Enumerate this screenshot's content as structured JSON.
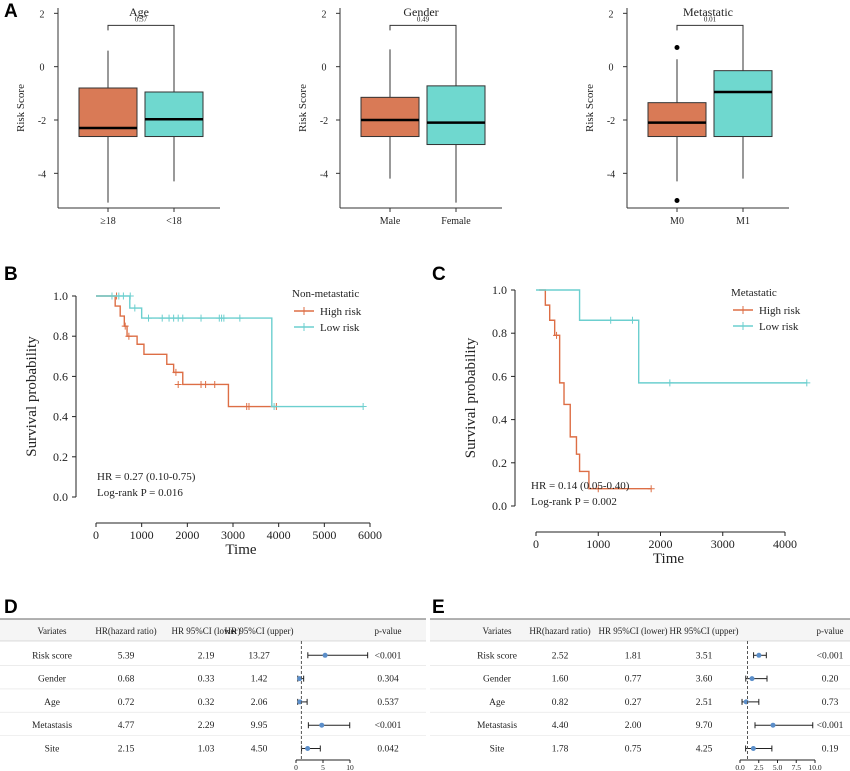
{
  "panel_letters": [
    "A",
    "B",
    "C",
    "D",
    "E"
  ],
  "colors": {
    "orange": "#d97a56",
    "teal": "#6fd8cf",
    "km_orange": "#dd6e45",
    "km_teal": "#6ccfcf",
    "forest_point": "#5b8ec9"
  },
  "chart_data": [
    {
      "panel": "A",
      "type": "box",
      "title": "Age",
      "ylabel": "Risk Score",
      "yticks": [
        "-4",
        "-2",
        "0",
        "2"
      ],
      "ylim": [
        -5.3,
        2.2
      ],
      "categories": [
        "≥18",
        "<18"
      ],
      "boxes": [
        {
          "name": "≥18",
          "color": "orange",
          "whisker_low": -5.1,
          "q1": -2.62,
          "median": -2.3,
          "q3": -0.8,
          "whisker_high": 0.6,
          "outliers": []
        },
        {
          "name": "<18",
          "color": "teal",
          "whisker_low": -4.3,
          "q1": -2.62,
          "median": -1.97,
          "q3": -0.95,
          "whisker_high": 1.4,
          "outliers": []
        }
      ],
      "pvalue": "0.57"
    },
    {
      "panel": "A",
      "type": "box",
      "title": "Gender",
      "ylabel": "Risk Score",
      "yticks": [
        "-4",
        "-2",
        "0",
        "2"
      ],
      "ylim": [
        -5.3,
        2.2
      ],
      "categories": [
        "Male",
        "Female"
      ],
      "boxes": [
        {
          "name": "Male",
          "color": "orange",
          "whisker_low": -4.2,
          "q1": -2.62,
          "median": -2.0,
          "q3": -1.15,
          "whisker_high": 0.65,
          "outliers": []
        },
        {
          "name": "Female",
          "color": "teal",
          "whisker_low": -5.1,
          "q1": -2.92,
          "median": -2.1,
          "q3": -0.72,
          "whisker_high": 1.4,
          "outliers": []
        }
      ],
      "pvalue": "0.49"
    },
    {
      "panel": "A",
      "type": "box",
      "title": "Metastatic",
      "ylabel": "Risk Score",
      "yticks": [
        "-4",
        "-2",
        "0",
        "2"
      ],
      "ylim": [
        -5.3,
        2.2
      ],
      "categories": [
        "M0",
        "M1"
      ],
      "boxes": [
        {
          "name": "M0",
          "color": "orange",
          "whisker_low": -4.3,
          "q1": -2.62,
          "median": -2.1,
          "q3": -1.35,
          "whisker_high": 0.28,
          "outliers": [
            0.72,
            -5.02
          ]
        },
        {
          "name": "M1",
          "color": "teal",
          "whisker_low": -4.2,
          "q1": -2.62,
          "median": -0.95,
          "q3": -0.15,
          "whisker_high": 1.4,
          "outliers": []
        }
      ],
      "pvalue": "0.01"
    },
    {
      "panel": "B",
      "type": "line",
      "xlabel": "Time",
      "ylabel": "Survival probability",
      "xticks": [
        "0",
        "1000",
        "2000",
        "3000",
        "4000",
        "5000",
        "6000"
      ],
      "yticks": [
        "0.0",
        "0.2",
        "0.4",
        "0.6",
        "0.8",
        "1.0"
      ],
      "xlim": [
        -80,
        6000
      ],
      "ylim": [
        -0.02,
        1.04
      ],
      "legend_title": "Non-metastatic",
      "legend_position": "top-right",
      "series": [
        {
          "name": "High risk",
          "color": "km_orange",
          "steps": [
            [
              0,
              1.0
            ],
            [
              420,
              0.95
            ],
            [
              530,
              0.9
            ],
            [
              620,
              0.85
            ],
            [
              680,
              0.8
            ],
            [
              900,
              0.76
            ],
            [
              1050,
              0.71
            ],
            [
              1550,
              0.66
            ],
            [
              1700,
              0.62
            ],
            [
              1900,
              0.56
            ],
            [
              2900,
              0.45
            ],
            [
              3950,
              0.45
            ]
          ],
          "censored": [
            [
              450,
              1.0
            ],
            [
              640,
              0.85
            ],
            [
              720,
              0.8
            ],
            [
              1750,
              0.62
            ],
            [
              1800,
              0.56
            ],
            [
              2300,
              0.56
            ],
            [
              2400,
              0.56
            ],
            [
              2600,
              0.56
            ],
            [
              3300,
              0.45
            ],
            [
              3350,
              0.45
            ],
            [
              3950,
              0.45
            ]
          ]
        },
        {
          "name": "Low risk",
          "color": "km_teal",
          "steps": [
            [
              0,
              1.0
            ],
            [
              740,
              0.94
            ],
            [
              1000,
              0.89
            ],
            [
              3850,
              0.45
            ],
            [
              5850,
              0.45
            ]
          ],
          "censored": [
            [
              350,
              1.0
            ],
            [
              500,
              1.0
            ],
            [
              600,
              1.0
            ],
            [
              750,
              1.0
            ],
            [
              850,
              0.94
            ],
            [
              1150,
              0.89
            ],
            [
              1450,
              0.89
            ],
            [
              1600,
              0.89
            ],
            [
              1700,
              0.89
            ],
            [
              1800,
              0.89
            ],
            [
              1900,
              0.89
            ],
            [
              2300,
              0.89
            ],
            [
              2700,
              0.89
            ],
            [
              2750,
              0.89
            ],
            [
              2800,
              0.89
            ],
            [
              3150,
              0.89
            ],
            [
              3900,
              0.45
            ],
            [
              5850,
              0.45
            ]
          ]
        }
      ],
      "annotations": [
        "HR = 0.27 (0.10-0.75)",
        "Log-rank P = 0.016"
      ]
    },
    {
      "panel": "C",
      "type": "line",
      "xlabel": "Time",
      "ylabel": "Survival probability",
      "xticks": [
        "0",
        "1000",
        "2000",
        "3000",
        "4000"
      ],
      "yticks": [
        "0.0",
        "0.2",
        "0.4",
        "0.6",
        "0.8",
        "1.0"
      ],
      "xlim": [
        -100,
        4400
      ],
      "ylim": [
        -0.02,
        1.04
      ],
      "legend_title": "Metastatic",
      "legend_position": "top-right",
      "series": [
        {
          "name": "High risk",
          "color": "km_orange",
          "steps": [
            [
              50,
              1.0
            ],
            [
              150,
              0.93
            ],
            [
              220,
              0.86
            ],
            [
              300,
              0.79
            ],
            [
              380,
              0.57
            ],
            [
              450,
              0.47
            ],
            [
              550,
              0.32
            ],
            [
              650,
              0.24
            ],
            [
              700,
              0.16
            ],
            [
              850,
              0.08
            ],
            [
              1850,
              0.08
            ]
          ],
          "censored": [
            [
              330,
              0.79
            ],
            [
              1000,
              0.08
            ],
            [
              1850,
              0.08
            ]
          ]
        },
        {
          "name": "Low risk",
          "color": "km_teal",
          "steps": [
            [
              0,
              1.0
            ],
            [
              700,
              0.86
            ],
            [
              1650,
              0.57
            ],
            [
              4350,
              0.57
            ]
          ],
          "censored": [
            [
              1200,
              0.86
            ],
            [
              1550,
              0.86
            ],
            [
              2150,
              0.57
            ],
            [
              4350,
              0.57
            ]
          ]
        }
      ],
      "annotations": [
        "HR = 0.14 (0.05-0.40)",
        "Log-rank P = 0.002"
      ]
    },
    {
      "panel": "D",
      "type": "table",
      "columns": [
        "Variates",
        "HR(hazard ratio)",
        "HR 95%CI (lower)",
        "HR 95%CI (upper)",
        "p-value"
      ],
      "rows": [
        {
          "variate": "Risk score",
          "hr": "5.39",
          "lower": "2.19",
          "upper": "13.27",
          "p": "<0.001"
        },
        {
          "variate": "Gender",
          "hr": "0.68",
          "lower": "0.33",
          "upper": "1.42",
          "p": "0.304"
        },
        {
          "variate": "Age",
          "hr": "0.72",
          "lower": "0.32",
          "upper": "2.06",
          "p": "0.537"
        },
        {
          "variate": "Metastasis",
          "hr": "4.77",
          "lower": "2.29",
          "upper": "9.95",
          "p": "<0.001"
        },
        {
          "variate": "Site",
          "hr": "2.15",
          "lower": "1.03",
          "upper": "4.50",
          "p": "0.042"
        }
      ],
      "forest_xticks": [
        "0",
        "5",
        "10"
      ],
      "forest_ref": 1,
      "forest_xlim": [
        -1,
        13.3
      ]
    },
    {
      "panel": "E",
      "type": "table",
      "columns": [
        "Variates",
        "HR(hazard ratio)",
        "HR 95%CI (lower)",
        "HR 95%CI (upper)",
        "p-value"
      ],
      "rows": [
        {
          "variate": "Risk score",
          "hr": "2.52",
          "lower": "1.81",
          "upper": "3.51",
          "p": "<0.001"
        },
        {
          "variate": "Gender",
          "hr": "1.60",
          "lower": "0.77",
          "upper": "3.60",
          "p": "0.20"
        },
        {
          "variate": "Age",
          "hr": "0.82",
          "lower": "0.27",
          "upper": "2.51",
          "p": "0.73"
        },
        {
          "variate": "Metastasis",
          "hr": "4.40",
          "lower": "2.00",
          "upper": "9.70",
          "p": "<0.001"
        },
        {
          "variate": "Site",
          "hr": "1.78",
          "lower": "0.75",
          "upper": "4.25",
          "p": "0.19"
        }
      ],
      "forest_xticks": [
        "0.0",
        "2.5",
        "5.0",
        "7.5",
        "10.0"
      ],
      "forest_ref": 1,
      "forest_xlim": [
        -0.3,
        10.3
      ]
    }
  ]
}
